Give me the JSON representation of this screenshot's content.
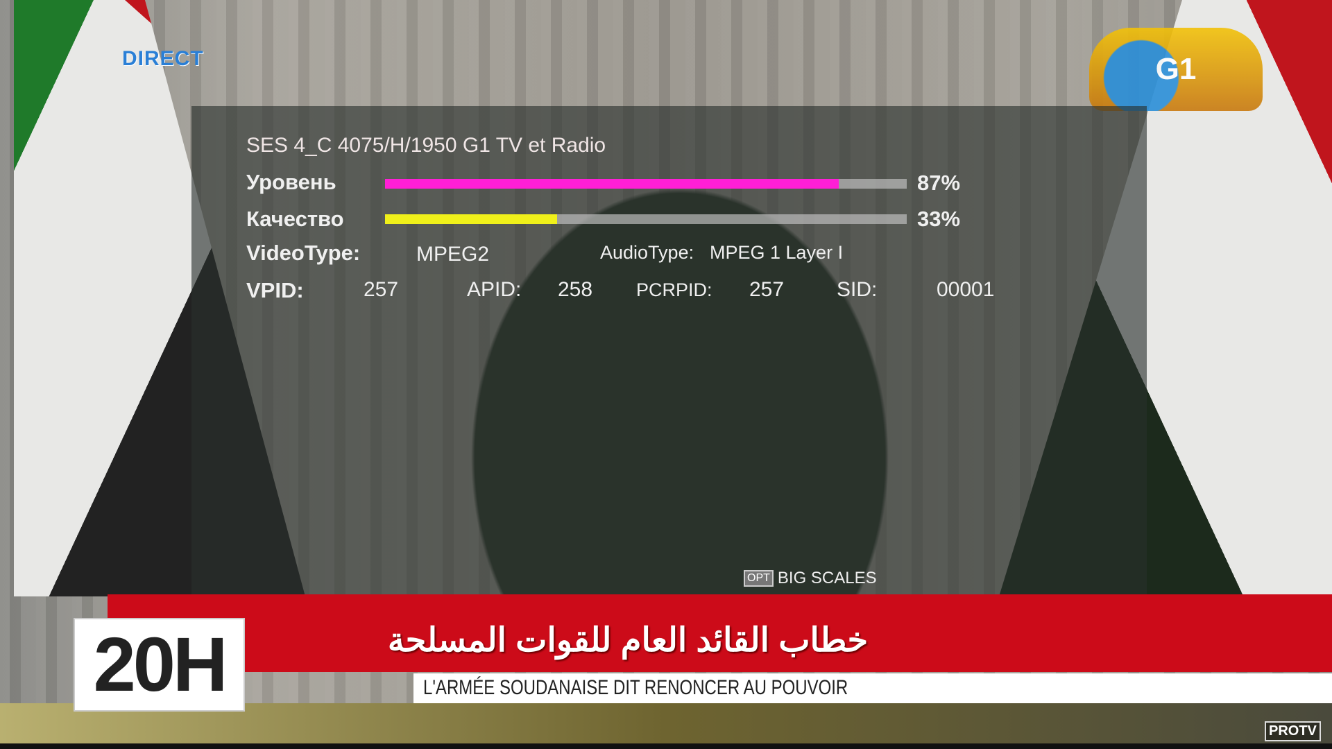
{
  "channel_overlays": {
    "direct_label": "DIRECT",
    "channel_logo": "G1",
    "watermark": "PROTV"
  },
  "signal_panel": {
    "title": "SES 4_C 4075/H/1950 G1 TV et Radio",
    "level": {
      "label": "Уровень",
      "value_text": "87%",
      "percent": 87,
      "color": "#ff1fd6"
    },
    "quality": {
      "label": "Качество",
      "value_text": "33%",
      "percent": 33,
      "color": "#f0f01a"
    },
    "video_type": {
      "label": "VideoType:",
      "value": "MPEG2"
    },
    "audio_type": {
      "label": "AudioType:",
      "value": "MPEG 1 Layer I"
    },
    "vpid": {
      "label": "VPID:",
      "value": "257"
    },
    "apid": {
      "label": "APID:",
      "value": "258"
    },
    "pcrpid": {
      "label": "PCRPID:",
      "value": "257"
    },
    "sid": {
      "label": "SID:",
      "value": "00001"
    },
    "opt_key": "OPT",
    "opt_label": "BIG SCALES"
  },
  "news": {
    "time": "20H",
    "headline_arabic": "خطاب القائد العام للقوات المسلحة",
    "ticker": "L'ARMÉE SOUDANAISE DIT RENONCER AU POUVOIR"
  }
}
